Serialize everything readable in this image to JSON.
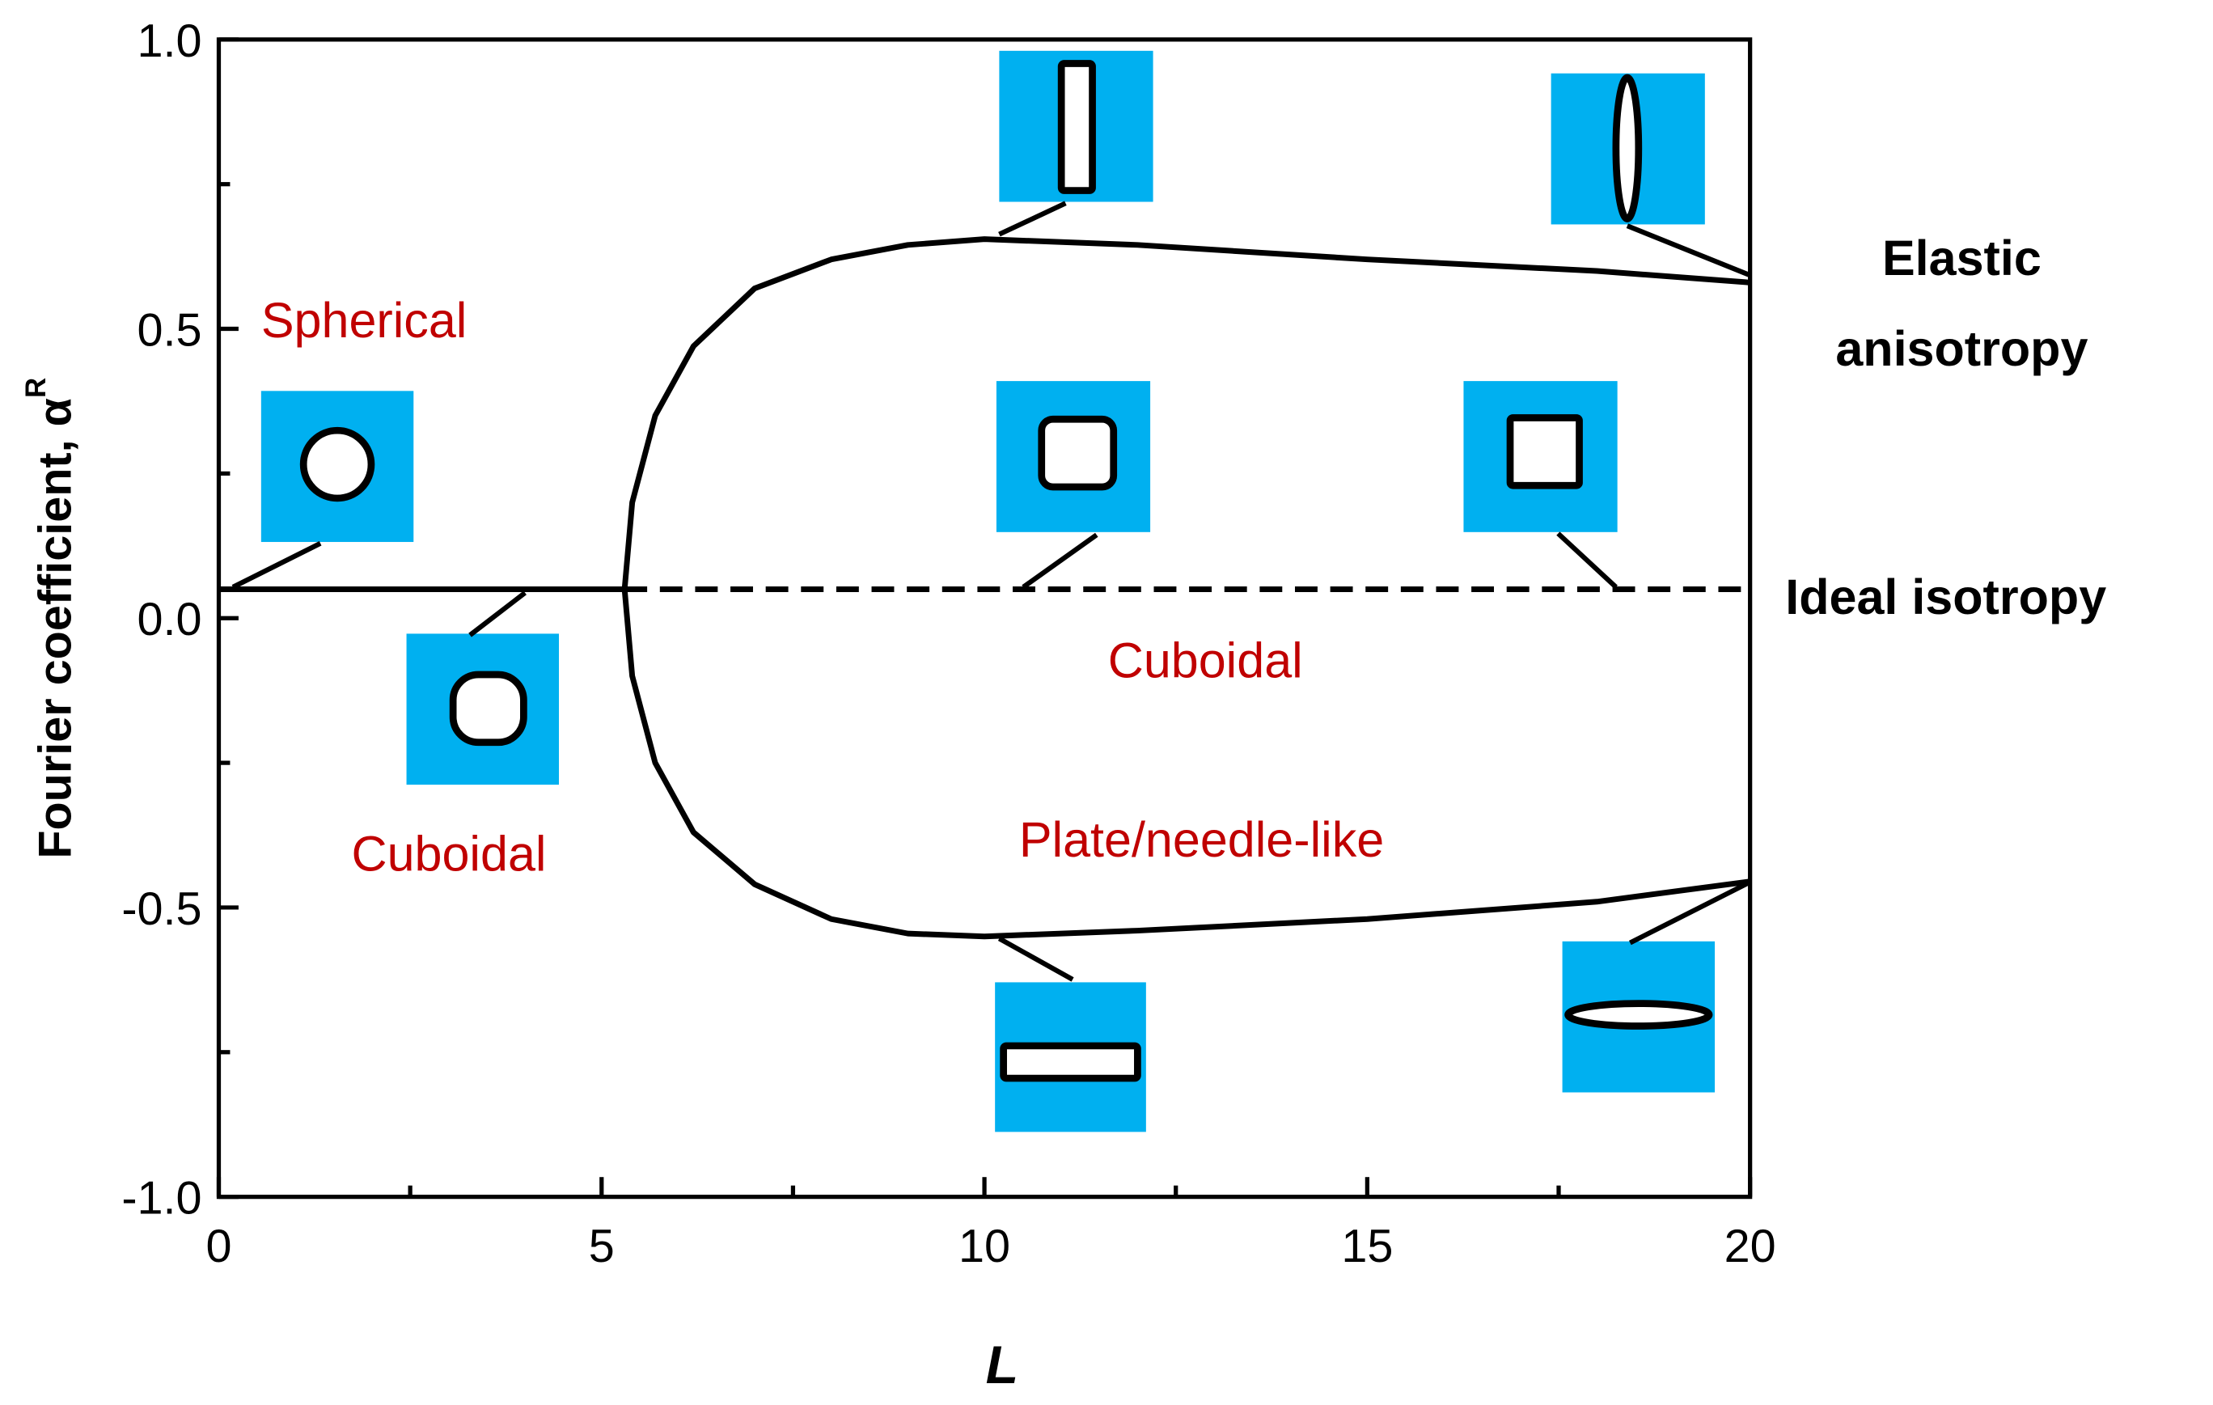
{
  "chart_data": {
    "type": "line",
    "x_label": "L",
    "y_label": "Fourier coefficient, α",
    "y_label_superscript": "R",
    "xlim": [
      0,
      20
    ],
    "ylim": [
      -1.0,
      1.0
    ],
    "xticks": [
      0,
      5,
      10,
      15,
      20
    ],
    "yticks": [
      {
        "value": -1.0,
        "label": "-1.0"
      },
      {
        "value": -0.5,
        "label": "-0.5"
      },
      {
        "value": 0.0,
        "label": "0.0"
      },
      {
        "value": 0.5,
        "label": "0.5"
      },
      {
        "value": 1.0,
        "label": "1.0"
      }
    ],
    "xminor_ticks": [
      2.5,
      7.5,
      12.5,
      17.5
    ],
    "yminor_ticks": [
      -0.75,
      -0.25,
      0.25,
      0.75
    ],
    "series": [
      {
        "color": "#000000",
        "style": "solid",
        "x": [
          20,
          18,
          15,
          12,
          10,
          9,
          8,
          7,
          6.2,
          5.7,
          5.4,
          5.3,
          5.4,
          5.7,
          6.2,
          7,
          8,
          9,
          10,
          12,
          15,
          18,
          20
        ],
        "values": [
          -0.455,
          -0.49,
          -0.52,
          -0.54,
          -0.55,
          -0.545,
          -0.52,
          -0.46,
          -0.37,
          -0.25,
          -0.1,
          0.05,
          0.2,
          0.35,
          0.47,
          0.57,
          0.62,
          0.645,
          0.655,
          0.645,
          0.62,
          0.6,
          0.58
        ]
      },
      {
        "color": "#000000",
        "style": "solid",
        "x": [
          0,
          5.3
        ],
        "values": [
          0.05,
          0.05
        ]
      },
      {
        "color": "#000000",
        "style": "dashed",
        "x": [
          5.3,
          20
        ],
        "values": [
          0.05,
          0.05
        ]
      }
    ],
    "annotations": [
      "Spherical",
      "Cuboidal",
      "Cuboidal",
      "Plate/needle-like",
      "Elastic",
      "anisotropy",
      "Ideal isotropy"
    ]
  }
}
